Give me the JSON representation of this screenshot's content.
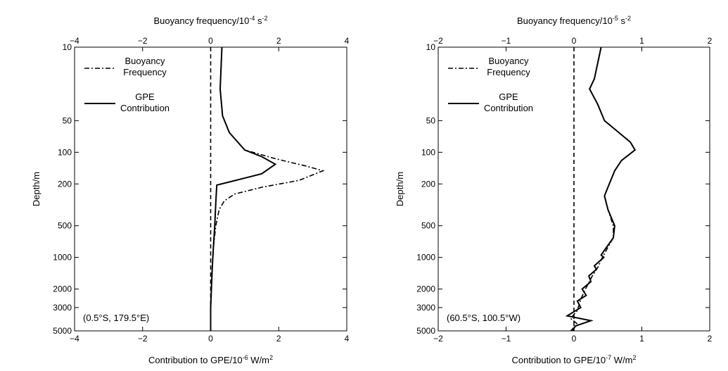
{
  "chart_data": [
    {
      "type": "line",
      "location": "(0.5°S, 179.5°E)",
      "xlabel_bottom": "Contribution to GPE/10",
      "xlabel_bottom_exp": "-6",
      "xlabel_bottom_unit": " W/m",
      "xlabel_bottom_unit_exp": "2",
      "xlabel_top": "Buoyancy frequency/10",
      "xlabel_top_exp": "-4",
      "xlabel_top_unit": " s",
      "xlabel_top_unit_exp": "-2",
      "ylabel": "Depth/m",
      "xlim": [
        -4,
        4
      ],
      "xticks": [
        -4,
        -2,
        0,
        2,
        4
      ],
      "ylim": [
        10,
        5000
      ],
      "yscale": "log",
      "yreversed": true,
      "yticks": [
        10,
        50,
        100,
        200,
        500,
        1000,
        2000,
        3000,
        5000
      ],
      "legend_placement": "top-left",
      "series": [
        {
          "name": "Buoyancy Frequency",
          "style": "dashdot",
          "points": [
            [
              0.33,
              10
            ],
            [
              0.28,
              25
            ],
            [
              0.35,
              45
            ],
            [
              0.55,
              65
            ],
            [
              1.0,
              95
            ],
            [
              1.9,
              115
            ],
            [
              2.8,
              135
            ],
            [
              3.3,
              150
            ],
            [
              2.6,
              185
            ],
            [
              1.5,
              215
            ],
            [
              0.7,
              250
            ],
            [
              0.4,
              290
            ],
            [
              0.25,
              350
            ],
            [
              0.15,
              500
            ],
            [
              0.08,
              800
            ],
            [
              0.05,
              1200
            ],
            [
              0.02,
              2000
            ],
            [
              0.0,
              3000
            ],
            [
              0.0,
              5000
            ]
          ]
        },
        {
          "name": "GPE Contribution",
          "style": "solid",
          "points": [
            [
              0.33,
              10
            ],
            [
              0.28,
              25
            ],
            [
              0.35,
              45
            ],
            [
              0.55,
              65
            ],
            [
              1.0,
              95
            ],
            [
              1.5,
              110
            ],
            [
              1.9,
              130
            ],
            [
              1.5,
              160
            ],
            [
              0.6,
              190
            ],
            [
              0.18,
              205
            ],
            [
              0.15,
              300
            ],
            [
              0.12,
              500
            ],
            [
              0.08,
              800
            ],
            [
              0.05,
              1200
            ],
            [
              0.02,
              2000
            ],
            [
              0.0,
              3000
            ],
            [
              0.0,
              5000
            ]
          ]
        }
      ]
    },
    {
      "type": "line",
      "location": "(60.5°S, 100.5°W)",
      "xlabel_bottom": "Contribution to GPE/10",
      "xlabel_bottom_exp": "-7",
      "xlabel_bottom_unit": " W/m",
      "xlabel_bottom_unit_exp": "2",
      "xlabel_top": "Buoyancy frequency/10",
      "xlabel_top_exp": "-5",
      "xlabel_top_unit": " s",
      "xlabel_top_unit_exp": "-2",
      "ylabel": "Depth/m",
      "xlim": [
        -2,
        2
      ],
      "xticks": [
        -2,
        -1,
        0,
        1,
        2
      ],
      "ylim": [
        10,
        5000
      ],
      "yscale": "log",
      "yreversed": true,
      "yticks": [
        10,
        50,
        100,
        200,
        500,
        1000,
        2000,
        3000,
        5000
      ],
      "legend_placement": "top-left",
      "series": [
        {
          "name": "Buoyancy Frequency",
          "style": "dashdot",
          "points": [
            [
              0.4,
              10
            ],
            [
              0.3,
              20
            ],
            [
              0.23,
              25
            ],
            [
              0.35,
              35
            ],
            [
              0.45,
              50
            ],
            [
              0.83,
              80
            ],
            [
              0.9,
              95
            ],
            [
              0.7,
              120
            ],
            [
              0.6,
              150
            ],
            [
              0.52,
              200
            ],
            [
              0.45,
              260
            ],
            [
              0.5,
              350
            ],
            [
              0.58,
              500
            ],
            [
              0.58,
              650
            ],
            [
              0.5,
              800
            ],
            [
              0.42,
              1000
            ],
            [
              0.35,
              1250
            ],
            [
              0.27,
              1500
            ],
            [
              0.17,
              2000
            ],
            [
              0.1,
              2500
            ],
            [
              0.05,
              3200
            ],
            [
              -0.05,
              3800
            ],
            [
              0.05,
              4300
            ],
            [
              -0.05,
              5000
            ]
          ]
        },
        {
          "name": "GPE Contribution",
          "style": "solid",
          "points": [
            [
              0.4,
              10
            ],
            [
              0.3,
              20
            ],
            [
              0.23,
              25
            ],
            [
              0.35,
              35
            ],
            [
              0.45,
              50
            ],
            [
              0.83,
              80
            ],
            [
              0.9,
              95
            ],
            [
              0.7,
              120
            ],
            [
              0.6,
              150
            ],
            [
              0.52,
              200
            ],
            [
              0.45,
              260
            ],
            [
              0.5,
              350
            ],
            [
              0.6,
              500
            ],
            [
              0.58,
              650
            ],
            [
              0.48,
              800
            ],
            [
              0.4,
              950
            ],
            [
              0.44,
              1000
            ],
            [
              0.3,
              1200
            ],
            [
              0.33,
              1300
            ],
            [
              0.22,
              1500
            ],
            [
              0.25,
              1700
            ],
            [
              0.12,
              2000
            ],
            [
              0.18,
              2300
            ],
            [
              0.05,
              2600
            ],
            [
              0.1,
              3000
            ],
            [
              -0.1,
              3600
            ],
            [
              0.25,
              4000
            ],
            [
              0.02,
              4500
            ],
            [
              -0.02,
              5000
            ]
          ]
        }
      ]
    }
  ]
}
